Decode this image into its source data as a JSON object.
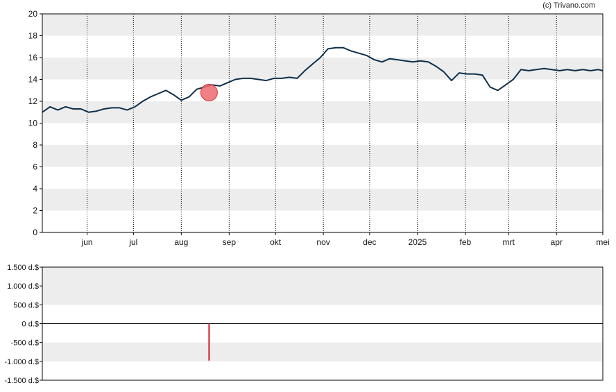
{
  "credit": "(c) Trivano.com",
  "colors": {
    "band": "#ededed",
    "price_line": "#0d2f4a",
    "marker_fill": "#ef6a6e",
    "marker_stroke": "#d03238",
    "volume_bar": "#d8112a",
    "axis": "#000000"
  },
  "chart_data": [
    {
      "type": "line",
      "title": "",
      "xlabel": "",
      "ylabel": "",
      "ylim": [
        0,
        20
      ],
      "y_ticks": [
        "0",
        "2",
        "4",
        "6",
        "8",
        "10",
        "12",
        "14",
        "16",
        "18",
        "20"
      ],
      "x_tick_labels": [
        "jun",
        "jul",
        "aug",
        "sep",
        "okt",
        "nov",
        "dec",
        "2025",
        "feb",
        "mrt",
        "apr",
        "mei"
      ],
      "x_tick_dates": [
        "2024-06-01",
        "2024-07-01",
        "2024-08-01",
        "2024-09-01",
        "2024-10-01",
        "2024-11-01",
        "2024-12-01",
        "2025-01-01",
        "2025-02-01",
        "2025-03-01",
        "2025-04-01",
        "2025-05-01"
      ],
      "x_range": [
        "2024-05-03",
        "2025-05-01"
      ],
      "grid": "dotted vertical lines at month ticks, alternating horizontal bands",
      "series": [
        {
          "x": [
            "2024-05-03",
            "2024-05-08",
            "2024-05-13",
            "2024-05-18",
            "2024-05-23",
            "2024-05-28",
            "2024-06-02",
            "2024-06-07",
            "2024-06-12",
            "2024-06-17",
            "2024-06-22",
            "2024-06-27",
            "2024-07-02",
            "2024-07-07",
            "2024-07-12",
            "2024-07-17",
            "2024-07-22",
            "2024-07-27",
            "2024-08-01",
            "2024-08-06",
            "2024-08-11",
            "2024-08-16",
            "2024-08-21",
            "2024-08-26",
            "2024-08-31",
            "2024-09-05",
            "2024-09-10",
            "2024-09-15",
            "2024-09-20",
            "2024-09-25",
            "2024-09-30",
            "2024-10-05",
            "2024-10-10",
            "2024-10-15",
            "2024-10-20",
            "2024-10-25",
            "2024-10-30",
            "2024-11-04",
            "2024-11-09",
            "2024-11-14",
            "2024-11-19",
            "2024-11-24",
            "2024-11-29",
            "2024-12-04",
            "2024-12-09",
            "2024-12-14",
            "2024-12-19",
            "2024-12-24",
            "2024-12-29",
            "2025-01-03",
            "2025-01-08",
            "2025-01-13",
            "2025-01-18",
            "2025-01-23",
            "2025-01-28",
            "2025-02-02",
            "2025-02-07",
            "2025-02-12",
            "2025-02-17",
            "2025-02-22",
            "2025-02-27",
            "2025-03-04",
            "2025-03-09",
            "2025-03-14",
            "2025-03-19",
            "2025-03-24",
            "2025-03-29",
            "2025-04-03",
            "2025-04-08",
            "2025-04-13",
            "2025-04-18",
            "2025-04-23",
            "2025-04-28",
            "2025-05-01"
          ],
          "values": [
            11.0,
            11.5,
            11.2,
            11.5,
            11.3,
            11.3,
            11.0,
            11.1,
            11.3,
            11.4,
            11.4,
            11.2,
            11.5,
            12.0,
            12.4,
            12.7,
            13.0,
            12.6,
            12.1,
            12.4,
            13.1,
            13.3,
            13.5,
            13.4,
            13.7,
            14.0,
            14.1,
            14.1,
            14.0,
            13.9,
            14.1,
            14.1,
            14.2,
            14.1,
            14.8,
            15.4,
            16.0,
            16.8,
            16.9,
            16.9,
            16.6,
            16.4,
            16.2,
            15.8,
            15.6,
            15.9,
            15.8,
            15.7,
            15.6,
            15.7,
            15.6,
            15.2,
            14.7,
            13.9,
            14.6,
            14.5,
            14.5,
            14.4,
            13.3,
            13.0,
            13.5,
            14.0,
            14.9,
            14.8,
            14.9,
            15.0,
            14.9,
            14.8,
            14.9,
            14.8,
            14.9,
            14.8,
            14.9,
            14.8
          ]
        }
      ],
      "annotations": [
        {
          "type": "marker",
          "date": "2024-08-19",
          "value": 12.8
        }
      ]
    },
    {
      "type": "bar",
      "title": "",
      "ylim": [
        -1500,
        1500
      ],
      "y_ticks": [
        "-1.500 d.$",
        "-1.000 d.$",
        "-500 d.$",
        "0 d.$",
        "500 d.$",
        "1.000 d.$",
        "1.500 d.$"
      ],
      "y_tick_values": [
        -1500,
        -1000,
        -500,
        0,
        500,
        1000,
        1500
      ],
      "bars": [
        {
          "date": "2024-08-19",
          "value": -980
        }
      ]
    }
  ]
}
